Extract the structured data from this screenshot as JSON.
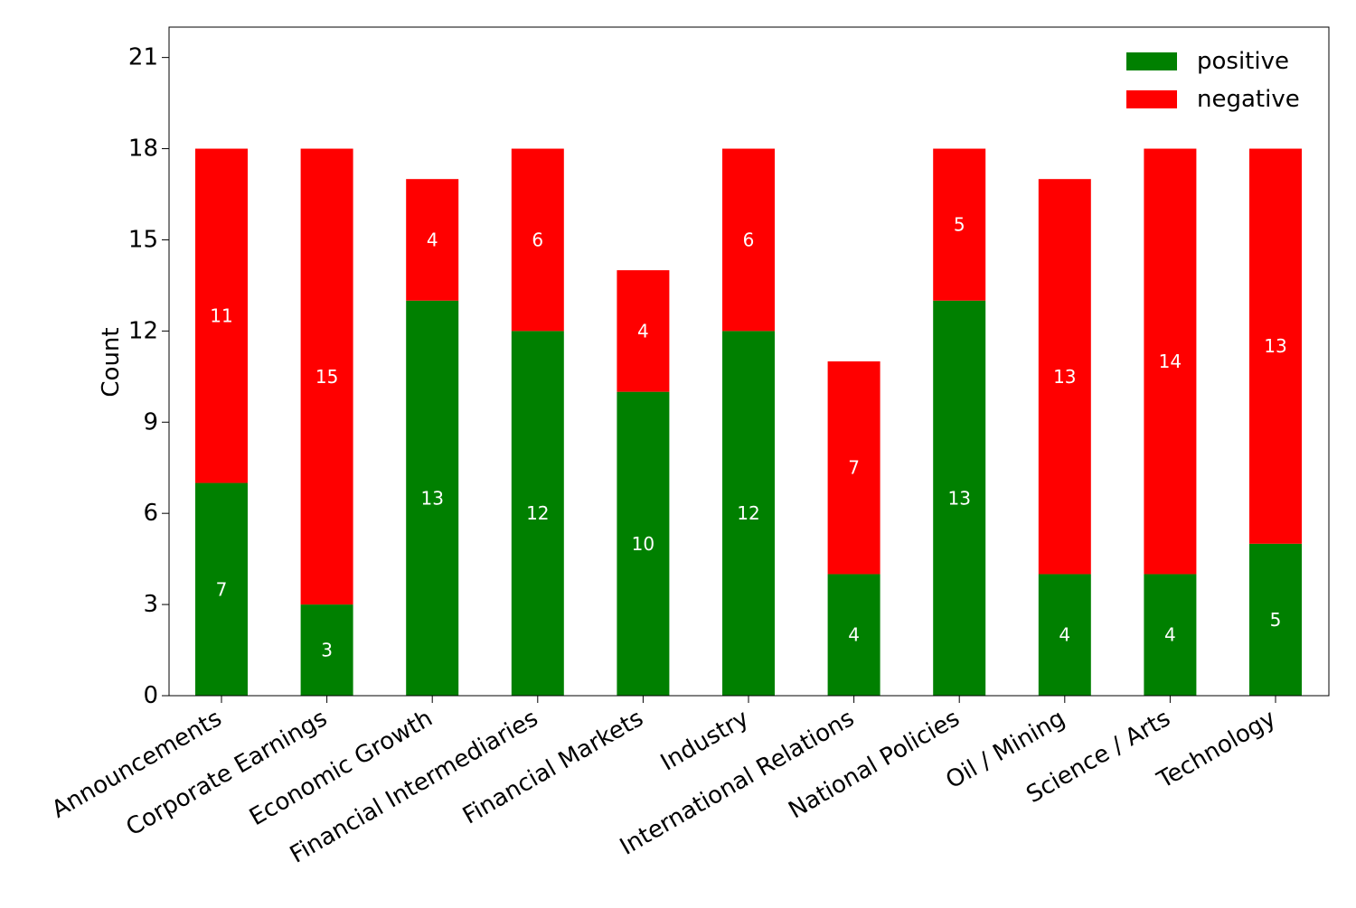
{
  "chart_data": {
    "type": "bar",
    "stacked": true,
    "title": "",
    "xlabel": "",
    "ylabel": "Count",
    "ylim": [
      0,
      22
    ],
    "yticks": [
      0,
      3,
      6,
      9,
      12,
      15,
      18,
      21
    ],
    "categories": [
      "Announcements",
      "Corporate Earnings",
      "Economic Growth",
      "Financial Intermediaries",
      "Financial Markets",
      "Industry",
      "International Relations",
      "National Policies",
      "Oil / Mining",
      "Science / Arts",
      "Technology"
    ],
    "series": [
      {
        "name": "positive",
        "color": "#008000",
        "values": [
          7,
          3,
          13,
          12,
          10,
          12,
          4,
          13,
          4,
          4,
          5
        ]
      },
      {
        "name": "negative",
        "color": "#ff0000",
        "values": [
          11,
          15,
          4,
          6,
          4,
          6,
          7,
          5,
          13,
          14,
          13
        ]
      }
    ],
    "legend_position": "top-right",
    "grid": false
  }
}
